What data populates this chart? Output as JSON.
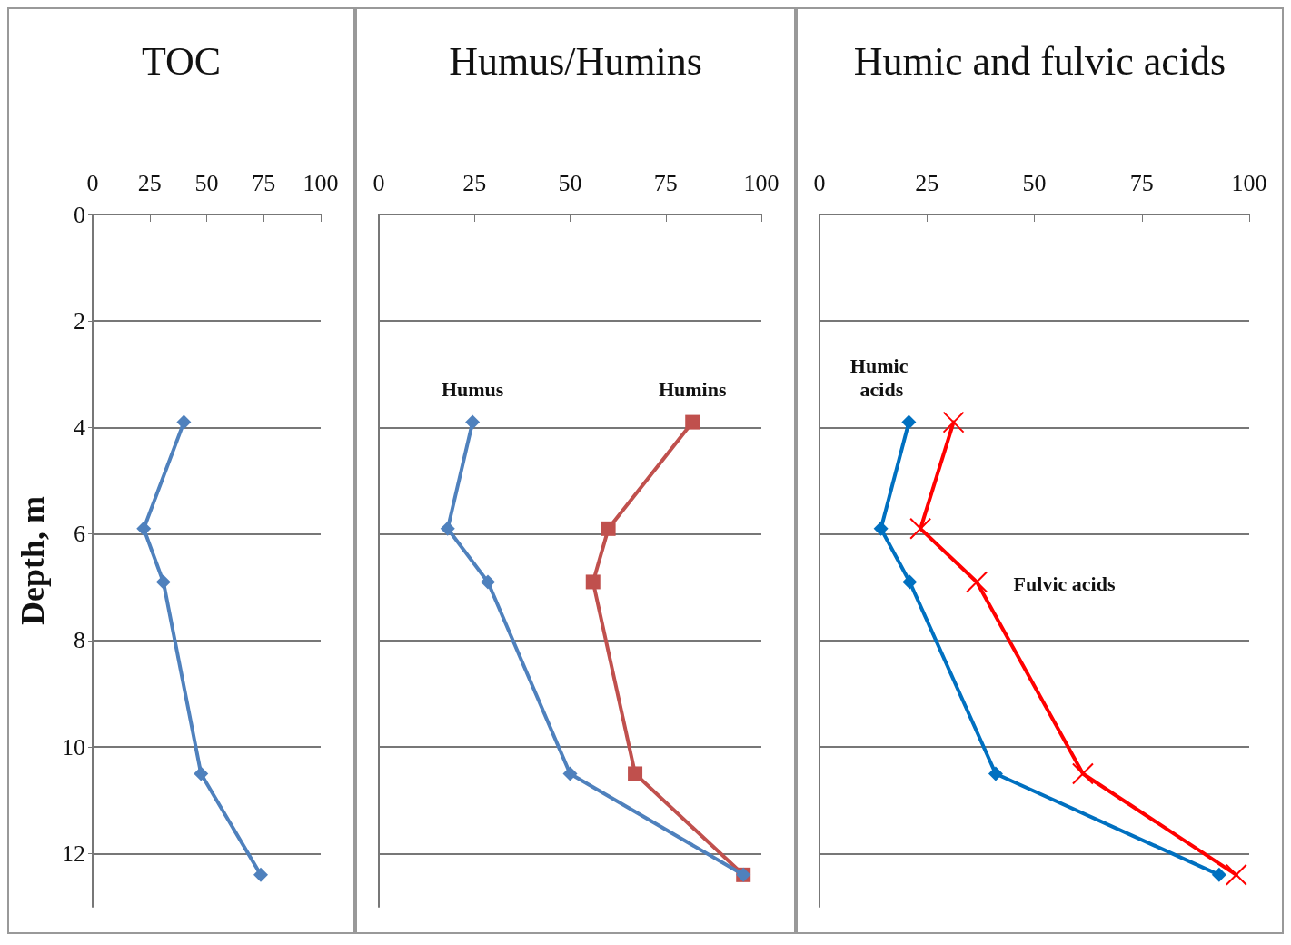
{
  "chart_data": [
    {
      "type": "line",
      "title": "TOC",
      "ylabel": "Depth, m",
      "xlim": [
        0,
        100
      ],
      "xticks": [
        0,
        25,
        50,
        75,
        100
      ],
      "ylim": [
        13,
        0
      ],
      "yticks": [
        0,
        2,
        4,
        6,
        8,
        10,
        12
      ],
      "grid": "y",
      "marker": "diamond",
      "series": [
        {
          "color": "#4f81bd",
          "x": [
            40,
            22.4,
            31,
            47.5,
            73.7
          ],
          "values": [
            3.9,
            5.9,
            6.9,
            10.5,
            12.4
          ]
        }
      ]
    },
    {
      "type": "line",
      "title": "Humus/Humins",
      "xlim": [
        0,
        100
      ],
      "xticks": [
        0,
        25,
        50,
        75,
        100
      ],
      "ylim": [
        13,
        0
      ],
      "yticks": [
        0,
        2,
        4,
        6,
        8,
        10,
        12
      ],
      "grid": "y",
      "tick_labels": "x",
      "series": [
        {
          "name": "Humus",
          "color": "#4f81bd",
          "marker": "diamond",
          "x": [
            24.5,
            18,
            28.5,
            50,
            95.3
          ],
          "values": [
            3.9,
            5.9,
            6.9,
            10.5,
            12.4
          ]
        },
        {
          "name": "Humins",
          "color": "#c0504d",
          "marker": "square",
          "x": [
            82,
            60,
            56,
            67,
            95.3
          ],
          "values": [
            3.9,
            5.9,
            6.9,
            10.5,
            12.4
          ]
        }
      ]
    },
    {
      "type": "line",
      "title": "Humic and fulvic acids",
      "xlim": [
        0,
        100
      ],
      "xticks": [
        0,
        25,
        50,
        75,
        100
      ],
      "ylim": [
        13,
        0
      ],
      "yticks": [
        0,
        2,
        4,
        6,
        8,
        10,
        12
      ],
      "grid": "y",
      "tick_labels": "x",
      "series": [
        {
          "name": "Humic acids",
          "color": "#0070c0",
          "marker": "diamond",
          "x": [
            20.8,
            14.3,
            21,
            41,
            93
          ],
          "values": [
            3.9,
            5.9,
            6.9,
            10.5,
            12.4
          ]
        },
        {
          "name": "Fulvic acids",
          "color": "#ff0000",
          "marker": "cross",
          "x": [
            31.2,
            23.5,
            36.6,
            61.3,
            97
          ],
          "values": [
            3.9,
            5.9,
            6.9,
            10.5,
            12.4
          ]
        }
      ]
    }
  ]
}
